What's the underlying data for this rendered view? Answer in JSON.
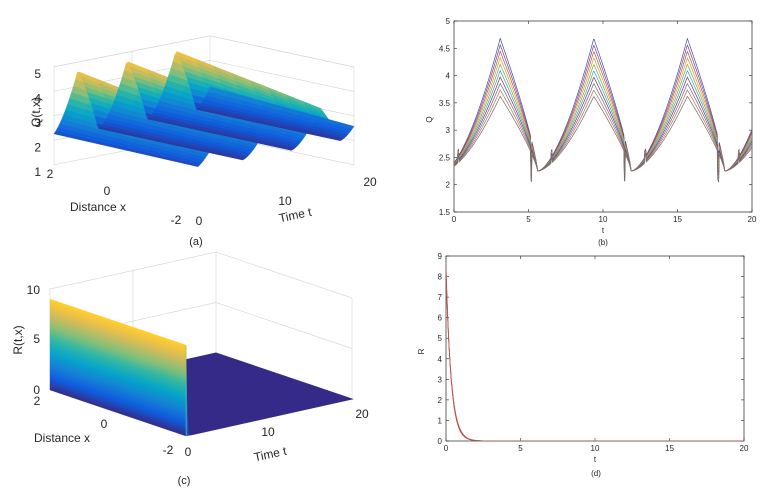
{
  "figure": {
    "panel_labels": [
      "(a)",
      "(b)",
      "(c)",
      "(d)"
    ]
  },
  "chart_data": [
    {
      "id": "a",
      "type": "surface",
      "zlabel": "Q(t,x)",
      "xlabel": "Distance x",
      "ylabel": "Time t",
      "zticks": [
        "1",
        "2",
        "3",
        "4",
        "5"
      ],
      "xticks": [
        "2",
        "0",
        "-2"
      ],
      "tticks": [
        "0",
        "10",
        "20"
      ],
      "zlim": [
        1,
        5
      ],
      "xlim": [
        -2,
        2
      ],
      "tlim": [
        0,
        20
      ],
      "peak_times": [
        3.1,
        9.4,
        15.7
      ],
      "peak_value": 4.7,
      "trough_value": 2.3,
      "colormap": [
        "#352a87",
        "#0f5cdd",
        "#1481d6",
        "#06a4ca",
        "#2eb7a4",
        "#87bf77",
        "#d1bb59",
        "#fec832",
        "#f9fb0e"
      ]
    },
    {
      "id": "b",
      "type": "line",
      "xlabel": "t",
      "ylabel": "Q",
      "xlim": [
        0,
        20
      ],
      "ylim": [
        1.5,
        5
      ],
      "xticks": [
        "0",
        "5",
        "10",
        "15",
        "20"
      ],
      "yticks": [
        "1.5",
        "2",
        "2.5",
        "3",
        "3.5",
        "4",
        "4.5",
        "5"
      ],
      "series_count": 10,
      "peak_max": 4.68,
      "peak_min": 3.62,
      "trough_value": 2.25,
      "period": 6.28,
      "colors": [
        "#3d4fa8",
        "#7b3f8c",
        "#b5543f",
        "#d29a2e",
        "#7fa34a",
        "#2f9fc6",
        "#8a2d4f",
        "#5c6e9a",
        "#c76c4a",
        "#6d6d6d"
      ]
    },
    {
      "id": "c",
      "type": "surface",
      "zlabel": "R(t,x)",
      "xlabel": "Distance x",
      "ylabel": "Time t",
      "zticks": [
        "0",
        "5",
        "10"
      ],
      "xticks": [
        "2",
        "0",
        "-2"
      ],
      "tticks": [
        "0",
        "10",
        "20"
      ],
      "zlim": [
        0,
        10
      ],
      "xlim": [
        -2,
        2
      ],
      "tlim": [
        0,
        20
      ],
      "initial_value": 9.0,
      "decay_rate": 3.0,
      "floor_color": "#352a87"
    },
    {
      "id": "d",
      "type": "line",
      "xlabel": "t",
      "ylabel": "R",
      "xlim": [
        0,
        20
      ],
      "ylim": [
        0,
        9
      ],
      "xticks": [
        "0",
        "5",
        "10",
        "15",
        "20"
      ],
      "yticks": [
        "0",
        "1",
        "2",
        "3",
        "4",
        "5",
        "6",
        "7",
        "8",
        "9"
      ],
      "initial_value": 8.5,
      "decay_rate": 3.0,
      "colors": [
        "#b04040",
        "#8a5a5a",
        "#c85050"
      ]
    }
  ]
}
